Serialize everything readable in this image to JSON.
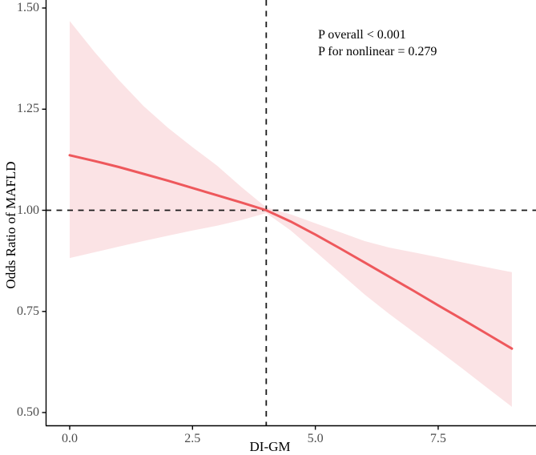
{
  "figure": {
    "background": "#ffffff",
    "annotation": {
      "line1": "P overall < 0.001",
      "line2": "P for nonlinear = 0.279"
    },
    "axes": {
      "x_label": "DI-GM",
      "y_label": "Odds Ratio of MAFLD",
      "x_tick_labels": [
        "0.0",
        "2.5",
        "5.0",
        "7.5"
      ],
      "y_tick_labels": [
        "1.50",
        "1.25",
        "1.00",
        "0.75",
        "0.50"
      ]
    },
    "colors": {
      "line": "#ee585c",
      "band": "#fbe3e5",
      "dash_line": "#1a1a1a",
      "axis_line": "#000000",
      "tick_text": "#4d4d4d"
    }
  },
  "chart_data": {
    "type": "line",
    "title": "",
    "xlabel": "DI-GM",
    "ylabel": "Odds Ratio of MAFLD",
    "xlim": [
      -0.5,
      9.5
    ],
    "ylim": [
      0.47,
      1.52
    ],
    "grid": false,
    "legend": "none",
    "x_tick_values": [
      0,
      2.5,
      5,
      7.5
    ],
    "y_tick_values": [
      1.5,
      1.25,
      1.0,
      0.75,
      0.5
    ],
    "x": [
      0,
      0.5,
      1,
      1.5,
      2,
      2.5,
      3,
      3.5,
      4,
      4.5,
      5,
      5.5,
      6,
      6.5,
      7,
      7.5,
      8,
      8.5,
      9
    ],
    "series": [
      {
        "name": "odds_ratio_spline",
        "values": [
          1.136,
          1.122,
          1.107,
          1.09,
          1.073,
          1.055,
          1.037,
          1.019,
          1.0,
          0.972,
          0.94,
          0.906,
          0.871,
          0.836,
          0.801,
          0.765,
          0.73,
          0.694,
          0.658
        ]
      },
      {
        "name": "ci_upper",
        "values": [
          1.468,
          1.392,
          1.322,
          1.258,
          1.204,
          1.156,
          1.11,
          1.057,
          1.007,
          0.99,
          0.968,
          0.946,
          0.924,
          0.908,
          0.896,
          0.884,
          0.871,
          0.859,
          0.847
        ]
      },
      {
        "name": "ci_lower",
        "values": [
          0.882,
          0.896,
          0.91,
          0.924,
          0.937,
          0.95,
          0.962,
          0.976,
          0.993,
          0.95,
          0.898,
          0.845,
          0.792,
          0.744,
          0.699,
          0.654,
          0.608,
          0.561,
          0.514
        ]
      }
    ],
    "reference_lines": {
      "vertical_x": 4,
      "horizontal_y": 1.0
    },
    "annotations": [
      "P overall < 0.001",
      "P for nonlinear = 0.279"
    ]
  }
}
